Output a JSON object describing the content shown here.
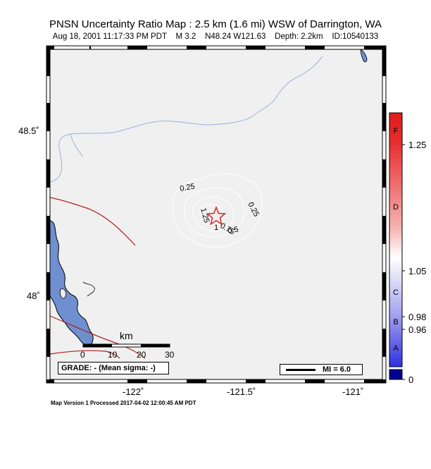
{
  "title": "PNSN Uncertainty Ratio Map : 2.5 km (1.6 mi) WSW of Darrington, WA",
  "subtitle": "Aug 18, 2001 11:17:33 PM PDT    M 3.2    N48.24 W121.63    Depth: 2.2km    ID:10540133",
  "map": {
    "lat_labels": [
      "48.5˚",
      "48˚"
    ],
    "lon_labels": [
      "-122˚",
      "-121.5˚",
      "-121˚"
    ],
    "epicenter_icon": "star-icon",
    "contour_labels": [
      "0.25",
      "0.25",
      "0.5",
      "0.75",
      "1",
      "1.25"
    ],
    "colors": {
      "background": "#f0f0f0",
      "water": "#6f8fd0",
      "river": "#9ab0e0",
      "fault": "#b02020",
      "contour": "#ffffff",
      "star": "#e02020"
    }
  },
  "scale_bar": {
    "unit_label": "km",
    "tick_labels": [
      "0",
      "10",
      "20",
      "30"
    ]
  },
  "grade": {
    "text": "GRADE: - (Mean sigma: -)"
  },
  "mi_legend": {
    "text": "MI = 6.0"
  },
  "colorbar": {
    "tick_labels": [
      "1.25",
      "1.05",
      "0.98",
      "0.96",
      "0"
    ],
    "letter_labels": [
      "F",
      "D",
      "C",
      "B",
      "A"
    ],
    "colors": {
      "top": "#e02020",
      "mid": "#ffffff",
      "bottom": "#2020e0",
      "base": "#000090"
    }
  },
  "footer": "Map Version 1 Processed 2017-04-02 12:00:45 AM PDT"
}
